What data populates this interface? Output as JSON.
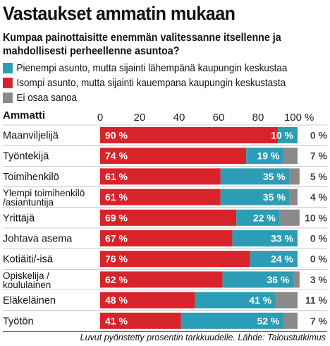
{
  "title": "Vastaukset ammatin mukaan",
  "subtitle": "Kumpaa painottaisitte enemmän valitessanne itsellenne ja mahdollisesti perheellenne asuntoa?",
  "column_header": "Ammatti",
  "footnote": "Luvut pyöristetty prosentin tarkkuudelle. Lähde: Taloustutkimus",
  "legend": [
    {
      "label": "Pienempi asunto, mutta sijainti lähempänä kaupungin keskustaa",
      "color": "#2b9db5"
    },
    {
      "label": "Isompi asunto, mutta sijainti kauempana kaupungin keskustasta",
      "color": "#d8232a"
    },
    {
      "label": "Ei osaa sanoa",
      "color": "#8a8a8a"
    }
  ],
  "chart_data": {
    "type": "bar",
    "orientation": "horizontal",
    "stacked": true,
    "xlim": [
      0,
      100
    ],
    "xticks": [
      "0",
      "20",
      "40",
      "60",
      "80",
      "100"
    ],
    "x_unit": "%",
    "categories": [
      [
        "Maanviljelijä"
      ],
      [
        "Työntekijä"
      ],
      [
        "Toimihenkilö"
      ],
      [
        "Ylempi toimihenkilö",
        "/asiantuntija"
      ],
      [
        "Yrittäjä"
      ],
      [
        "Johtava asema"
      ],
      [
        "Kotiäiti/-isä"
      ],
      [
        "Opiskelija /",
        "koululainen"
      ],
      [
        "Eläkeläinen"
      ],
      [
        "Työtön"
      ]
    ],
    "series": [
      {
        "key": "isompi",
        "color": "#d8232a",
        "values": [
          90,
          74,
          61,
          61,
          69,
          67,
          76,
          62,
          48,
          41
        ]
      },
      {
        "key": "pienempi",
        "color": "#2b9db5",
        "values": [
          10,
          19,
          35,
          35,
          22,
          33,
          24,
          36,
          41,
          52
        ]
      },
      {
        "key": "eos",
        "color": "#8a8a8a",
        "values": [
          0,
          7,
          5,
          4,
          10,
          0,
          0,
          3,
          11,
          7
        ]
      }
    ],
    "value_suffix": " %"
  }
}
